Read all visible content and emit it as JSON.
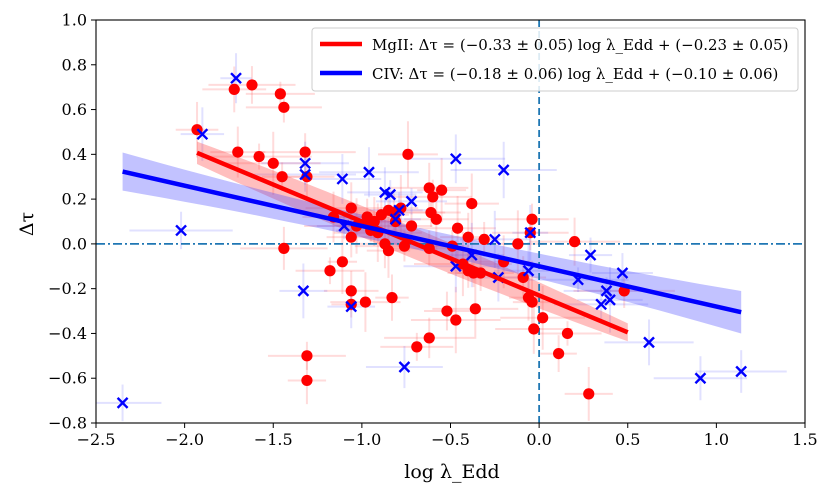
{
  "chart_data": {
    "type": "scatter",
    "title": "",
    "xlabel": "log λ_Edd",
    "ylabel": "Δτ",
    "xlim": [
      -2.5,
      1.5
    ],
    "ylim": [
      -0.8,
      1.0
    ],
    "xticks": [
      "−2.5",
      "−2.0",
      "−1.5",
      "−1.0",
      "−0.5",
      "0.0",
      "0.5",
      "1.0",
      "1.5"
    ],
    "yticks": [
      "−0.8",
      "−0.6",
      "−0.4",
      "−0.2",
      "0.0",
      "0.2",
      "0.4",
      "0.6",
      "0.8",
      "1.0"
    ],
    "xtick_values": [
      -2.5,
      -2.0,
      -1.5,
      -1.0,
      -0.5,
      0.0,
      0.5,
      1.0,
      1.5
    ],
    "ytick_values": [
      -0.8,
      -0.6,
      -0.4,
      -0.2,
      0.0,
      0.2,
      0.4,
      0.6,
      0.8,
      1.0
    ],
    "reference_lines": {
      "x": 0.0,
      "y": 0.0,
      "style": "dash-dot",
      "color": "#1f77b4"
    },
    "legend": {
      "placement": "top-right",
      "entries": [
        {
          "label": "MgII: Δτ = (−0.33 ± 0.05) log λ_Edd + (−0.23 ± 0.05)",
          "color": "#ff0000"
        },
        {
          "label": "CIV: Δτ = (−0.18 ± 0.06) log λ_Edd + (−0.10 ± 0.06)",
          "color": "#0000ff"
        }
      ]
    },
    "series": [
      {
        "name": "MgII",
        "marker": "circle",
        "color": "#ff0000",
        "fit": {
          "slope": -0.33,
          "intercept": -0.23,
          "x_range": [
            -1.93,
            0.5
          ],
          "band_width": [
            0.05,
            0.07,
            0.04
          ]
        },
        "points": [
          [
            -1.93,
            0.51
          ],
          [
            -1.72,
            0.69
          ],
          [
            -1.62,
            0.71
          ],
          [
            -1.46,
            0.67
          ],
          [
            -1.44,
            0.61
          ],
          [
            -1.7,
            0.41
          ],
          [
            -1.58,
            0.39
          ],
          [
            -1.5,
            0.36
          ],
          [
            -1.32,
            0.41
          ],
          [
            -1.45,
            0.3
          ],
          [
            -1.31,
            0.3
          ],
          [
            -0.74,
            0.4
          ],
          [
            -0.62,
            0.25
          ],
          [
            -0.55,
            0.24
          ],
          [
            -0.6,
            0.21
          ],
          [
            -1.06,
            0.16
          ],
          [
            -1.16,
            0.12
          ],
          [
            -0.97,
            0.12
          ],
          [
            -0.93,
            0.1
          ],
          [
            -0.89,
            0.13
          ],
          [
            -0.85,
            0.15
          ],
          [
            -0.82,
            0.14
          ],
          [
            -0.78,
            0.16
          ],
          [
            -0.61,
            0.14
          ],
          [
            -0.58,
            0.11
          ],
          [
            -0.38,
            0.18
          ],
          [
            -1.03,
            0.08
          ],
          [
            -0.95,
            0.06
          ],
          [
            -0.91,
            0.05
          ],
          [
            -0.81,
            0.1
          ],
          [
            -0.72,
            0.08
          ],
          [
            -0.46,
            0.07
          ],
          [
            -0.4,
            0.03
          ],
          [
            -1.06,
            0.03
          ],
          [
            -0.87,
            0.0
          ],
          [
            -0.76,
            -0.01
          ],
          [
            -0.49,
            -0.01
          ],
          [
            -0.04,
            0.11
          ],
          [
            -0.05,
            0.05
          ],
          [
            -0.31,
            0.02
          ],
          [
            -0.12,
            0.0
          ],
          [
            -0.62,
            -0.02
          ],
          [
            -1.44,
            -0.02
          ],
          [
            -0.85,
            -0.03
          ],
          [
            -0.43,
            -0.09
          ],
          [
            -1.11,
            -0.08
          ],
          [
            -1.18,
            -0.12
          ],
          [
            -0.4,
            -0.12
          ],
          [
            -0.37,
            -0.13
          ],
          [
            -0.33,
            -0.13
          ],
          [
            -0.2,
            -0.08
          ],
          [
            -0.09,
            -0.15
          ],
          [
            -1.06,
            -0.21
          ],
          [
            -0.83,
            -0.24
          ],
          [
            -1.06,
            -0.27
          ],
          [
            -0.98,
            -0.26
          ],
          [
            -0.06,
            -0.24
          ],
          [
            -0.04,
            -0.26
          ],
          [
            0.2,
            0.01
          ],
          [
            0.48,
            -0.21
          ],
          [
            -0.52,
            -0.3
          ],
          [
            -0.36,
            -0.29
          ],
          [
            -0.47,
            -0.34
          ],
          [
            0.02,
            -0.33
          ],
          [
            -0.03,
            -0.38
          ],
          [
            -0.62,
            -0.42
          ],
          [
            -0.69,
            -0.46
          ],
          [
            0.16,
            -0.4
          ],
          [
            0.11,
            -0.49
          ],
          [
            -1.31,
            -0.5
          ],
          [
            -1.31,
            -0.61
          ],
          [
            0.28,
            -0.67
          ]
        ]
      },
      {
        "name": "CIV",
        "marker": "x",
        "color": "#0000ff",
        "fit": {
          "slope": -0.18,
          "intercept": -0.1,
          "x_range": [
            -2.35,
            1.14
          ],
          "band_width": [
            0.085,
            0.05,
            0.095
          ]
        },
        "points": [
          [
            -1.71,
            0.74
          ],
          [
            -1.9,
            0.49
          ],
          [
            -1.32,
            0.36
          ],
          [
            -1.32,
            0.31
          ],
          [
            -1.11,
            0.29
          ],
          [
            -0.96,
            0.32
          ],
          [
            -0.47,
            0.38
          ],
          [
            -0.2,
            0.33
          ],
          [
            -0.87,
            0.23
          ],
          [
            -0.84,
            0.22
          ],
          [
            -0.79,
            0.15
          ],
          [
            -0.81,
            0.11
          ],
          [
            -0.72,
            0.19
          ],
          [
            -1.1,
            0.08
          ],
          [
            -2.02,
            0.06
          ],
          [
            -0.25,
            0.02
          ],
          [
            -0.05,
            0.05
          ],
          [
            -0.38,
            -0.05
          ],
          [
            -0.47,
            -0.1
          ],
          [
            -0.06,
            -0.12
          ],
          [
            -0.23,
            -0.15
          ],
          [
            0.29,
            -0.05
          ],
          [
            0.22,
            -0.16
          ],
          [
            0.38,
            -0.21
          ],
          [
            0.47,
            -0.13
          ],
          [
            0.35,
            -0.27
          ],
          [
            0.4,
            -0.25
          ],
          [
            -1.33,
            -0.21
          ],
          [
            -1.06,
            -0.28
          ],
          [
            -0.76,
            -0.55
          ],
          [
            0.62,
            -0.44
          ],
          [
            0.91,
            -0.6
          ],
          [
            1.14,
            -0.57
          ],
          [
            -2.35,
            -0.71
          ]
        ]
      }
    ]
  }
}
